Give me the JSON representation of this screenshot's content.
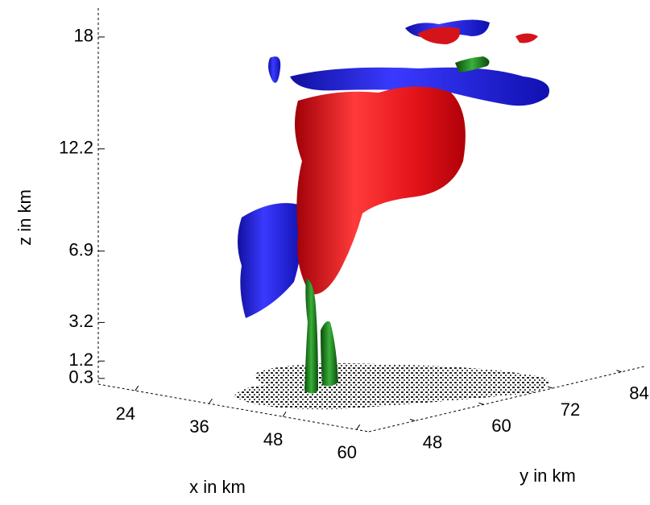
{
  "chart_data": {
    "type": "isosurface3d",
    "xlabel": "x in km",
    "ylabel": "y in km",
    "zlabel": "z in km",
    "xlim": [
      18,
      62
    ],
    "xticks": [
      24,
      36,
      48,
      60
    ],
    "ylim": [
      40,
      88
    ],
    "yticks": [
      48,
      60,
      72,
      84
    ],
    "zlim": [
      0,
      19.5
    ],
    "zticks": [
      0.3,
      1.2,
      3.2,
      6.9,
      12.2,
      18
    ]
  }
}
